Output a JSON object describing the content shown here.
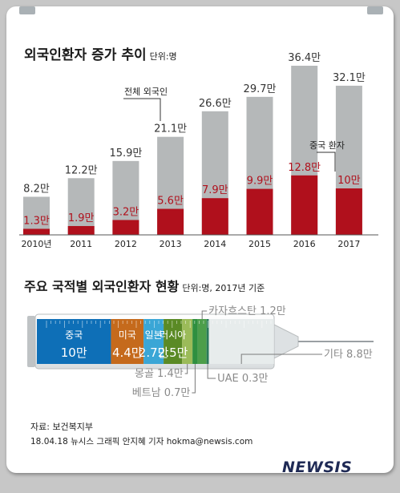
{
  "growth_chart": {
    "title": "외국인환자 증가 추이",
    "unit_label": "단위:명",
    "total_callout": "전체 외국인",
    "china_callout": "중국 환자"
  },
  "nation_chart": {
    "title": "주요 국적별 외국인환자 현황",
    "unit_label": "단위:명, 2017년 기준"
  },
  "footer": {
    "source": "자료: 보건복지부",
    "credit": "18.04.18 뉴시스 그래픽 안지혜 기자  hokma@newsis.com",
    "logo": "NEWSIS"
  },
  "colors": {
    "total": "#b5b8b9",
    "china": "#b0101c",
    "bg": "#c7c7c7"
  },
  "chart_data": [
    {
      "type": "bar",
      "categories": [
        "2010년",
        "2011",
        "2012",
        "2013",
        "2014",
        "2015",
        "2016",
        "2017"
      ],
      "series": [
        {
          "name": "전체 외국인",
          "values": [
            8.2,
            12.2,
            15.9,
            21.1,
            26.6,
            29.7,
            36.4,
            32.1
          ],
          "labels": [
            "8.2만",
            "12.2만",
            "15.9만",
            "21.1만",
            "26.6만",
            "29.7만",
            "36.4만",
            "32.1만"
          ]
        },
        {
          "name": "중국 환자",
          "values": [
            1.3,
            1.9,
            3.2,
            5.6,
            7.9,
            9.9,
            12.8,
            10
          ],
          "labels": [
            "1.3만",
            "1.9만",
            "3.2만",
            "5.6만",
            "7.9만",
            "9.9만",
            "12.8만",
            "10만"
          ]
        }
      ],
      "ylim": [
        0,
        38
      ]
    },
    {
      "type": "bar",
      "orientation": "stacked-horizontal",
      "segments": [
        {
          "name": "중국",
          "value": 10,
          "value_label": "10만",
          "color": "#0e6fb7"
        },
        {
          "name": "미국",
          "value": 4.4,
          "value_label": "4.4만",
          "color": "#c56a1c"
        },
        {
          "name": "일본",
          "value": 2.7,
          "value_label": "2.7만",
          "color": "#3aa6d6"
        },
        {
          "name": "러시아",
          "value": 2.5,
          "value_label": "2.5만",
          "color": "#5a8a25"
        },
        {
          "name": "몽골",
          "value": 1.4,
          "value_label": "1.4만",
          "color": "#9bbb59"
        },
        {
          "name": "베트남",
          "value": 0.7,
          "value_label": "0.7만",
          "color": "#2f8f3f"
        },
        {
          "name": "카자흐스탄",
          "value": 1.2,
          "value_label": "1.2만",
          "color": "#4c9e4a"
        },
        {
          "name": "UAE",
          "value": 0.3,
          "value_label": "0.3만",
          "color": "#2a7a5a"
        },
        {
          "name": "기타",
          "value": 8.8,
          "value_label": "8.8만",
          "color": "#e7ecec"
        }
      ]
    }
  ]
}
